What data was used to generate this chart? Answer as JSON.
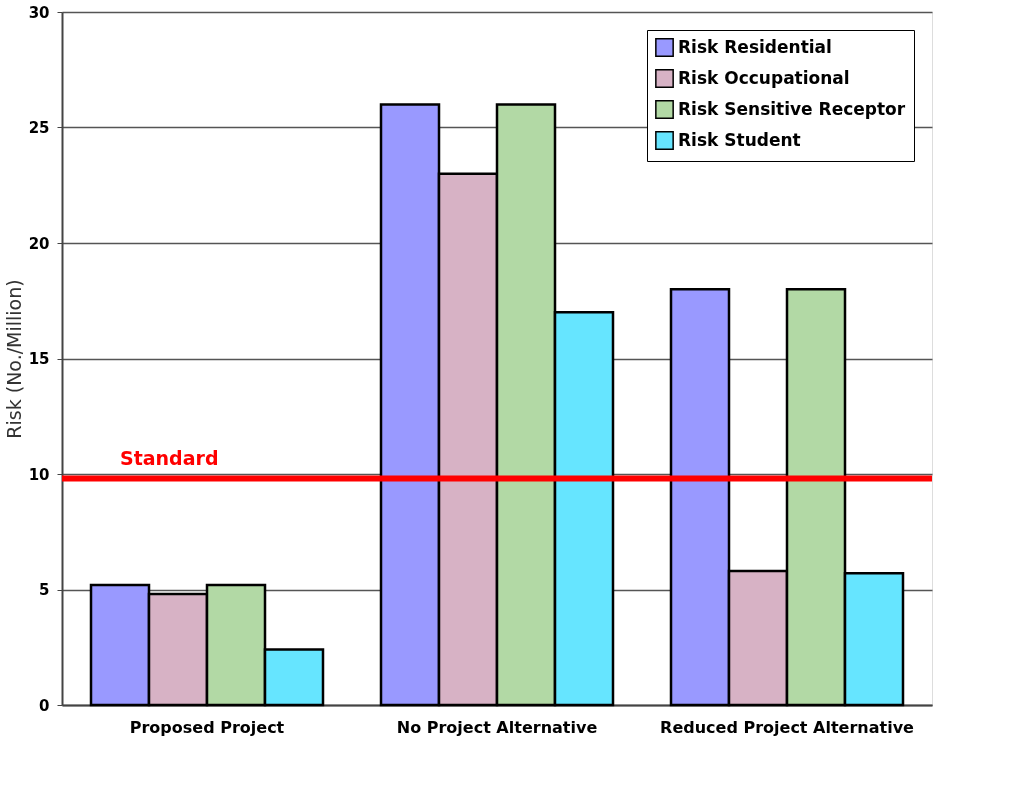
{
  "chart_data": {
    "type": "bar",
    "ylabel": "Risk (No./Million)",
    "categories": [
      "Proposed Project",
      "No Project Alternative",
      "Reduced Project Alternative"
    ],
    "series": [
      {
        "name": "Risk Residential",
        "color": "#9999ff",
        "values": [
          5.2,
          26,
          18
        ]
      },
      {
        "name": "Risk Occupational",
        "color": "#d7b2c5",
        "values": [
          4.8,
          23,
          5.8
        ]
      },
      {
        "name": "Risk Sensitive Receptor",
        "color": "#b2d9a5",
        "values": [
          5.2,
          26,
          18
        ]
      },
      {
        "name": "Risk Student",
        "color": "#66e5ff",
        "values": [
          2.4,
          17,
          5.7
        ]
      }
    ],
    "ylim": [
      0,
      30
    ],
    "yticks": [
      0,
      5,
      10,
      15,
      20,
      25,
      30
    ],
    "grid": "y",
    "legend": "top right",
    "ref_lines": [
      {
        "axis": "y",
        "value": 9.8,
        "label": "Standard",
        "color": "#ff0000"
      }
    ]
  }
}
